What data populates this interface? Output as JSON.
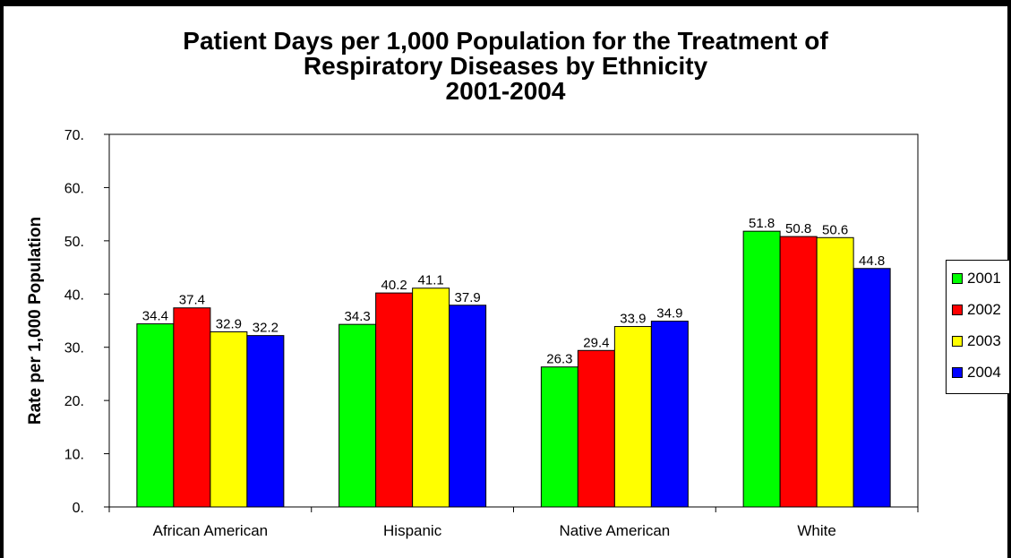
{
  "chart_data": {
    "type": "bar",
    "title_lines": [
      "Patient Days per 1,000 Population for the Treatment of",
      "Respiratory Diseases by Ethnicity",
      "2001-2004"
    ],
    "ylabel": "Rate per 1,000 Population",
    "xlabel": "",
    "categories": [
      "African American",
      "Hispanic",
      "Native American",
      "White"
    ],
    "ylim": [
      0,
      70
    ],
    "yticks": [
      0,
      10,
      20,
      30,
      40,
      50,
      60,
      70
    ],
    "ytick_labels": [
      "0.",
      "10.",
      "20.",
      "30.",
      "40.",
      "50.",
      "60.",
      "70."
    ],
    "series": [
      {
        "name": "2001",
        "color": "#00ff00",
        "values": [
          34.4,
          34.3,
          26.3,
          51.8
        ],
        "labels": [
          "34.4",
          "34.3",
          "26.3",
          "51.8"
        ]
      },
      {
        "name": "2002",
        "color": "#ff0000",
        "values": [
          37.4,
          40.2,
          29.4,
          50.8
        ],
        "labels": [
          "37.4",
          "40.2",
          "29.4",
          "50.8"
        ]
      },
      {
        "name": "2003",
        "color": "#ffff00",
        "values": [
          32.9,
          41.1,
          33.9,
          50.6
        ],
        "labels": [
          "32.9",
          "41.1",
          "33.9",
          "50.6"
        ]
      },
      {
        "name": "2004",
        "color": "#0000ff",
        "values": [
          32.2,
          37.9,
          34.9,
          44.8
        ],
        "labels": [
          "32.2",
          "37.9",
          "34.9",
          "44.8"
        ]
      }
    ],
    "grid": false,
    "legend_position": "right"
  }
}
